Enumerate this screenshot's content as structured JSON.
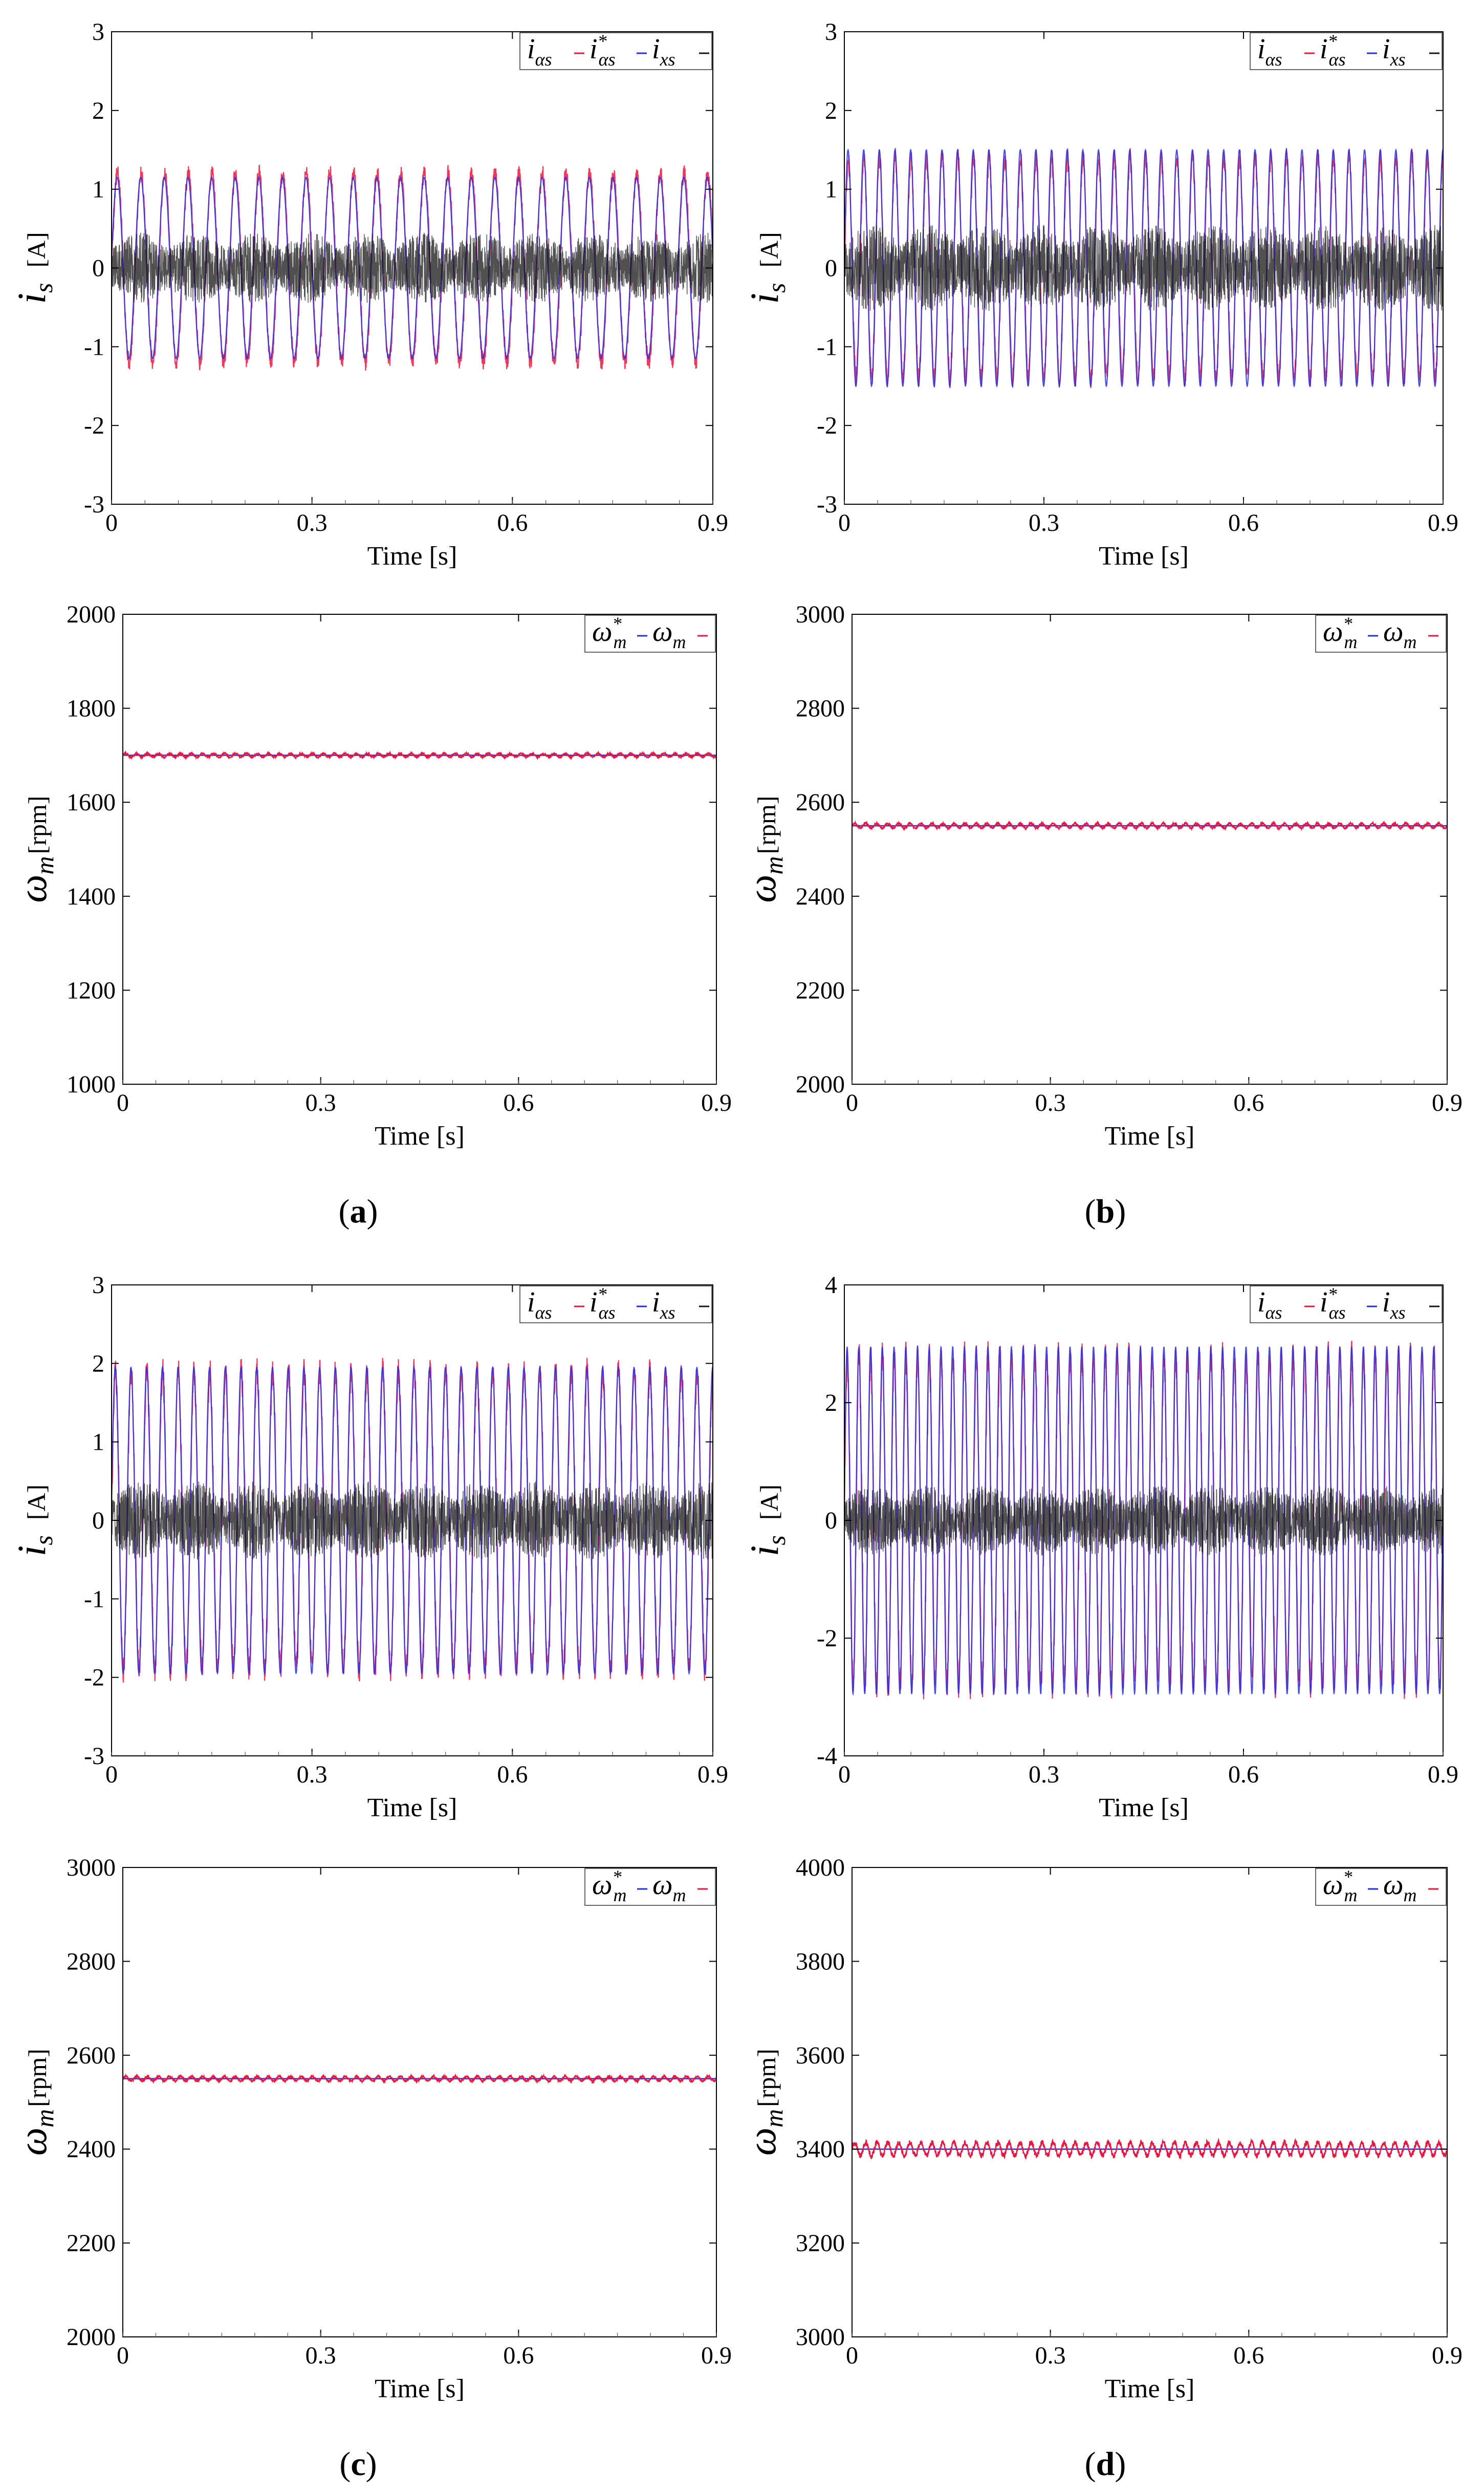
{
  "figure": {
    "panels": [
      {
        "id": "a",
        "caption": "(a)",
        "caption_letter": "a"
      },
      {
        "id": "b",
        "caption": "(b)",
        "caption_letter": "b"
      },
      {
        "id": "c",
        "caption": "(c)",
        "caption_letter": "c"
      },
      {
        "id": "d",
        "caption": "(d)",
        "caption_letter": "d"
      }
    ]
  },
  "colors": {
    "red": "#e8173f",
    "blue": "#2a2ee0",
    "dark": "#151515",
    "axis": "#000000",
    "minor_tick": "#555555"
  },
  "chart_data": [
    {
      "panel": "a",
      "kind": "current",
      "type": "line",
      "title": "",
      "xlabel": "Time [s]",
      "ylabel_symbol": "i",
      "ylabel_sub": "s",
      "ylabel_unit": "[A]",
      "xlim": [
        0,
        0.9
      ],
      "ylim": [
        -3,
        3
      ],
      "xticks": [
        0,
        0.3,
        0.6,
        0.9
      ],
      "xtick_labels": [
        "0",
        "0.3",
        "0.6",
        "0.9"
      ],
      "yticks": [
        -3,
        -2,
        -1,
        0,
        1,
        2,
        3
      ],
      "ytick_labels": [
        "-3",
        "-2",
        "-1",
        "0",
        "1",
        "2",
        "3"
      ],
      "grid": false,
      "legend_position": "top-right",
      "series": [
        {
          "name": "i_αs",
          "color_key": "red",
          "shape": "sine",
          "amplitude": 1.2,
          "frequency_hz": 28.3
        },
        {
          "name": "i*_αs",
          "color_key": "blue",
          "shape": "sine",
          "amplitude": 1.15,
          "frequency_hz": 28.3
        },
        {
          "name": "i_xs",
          "color_key": "dark",
          "shape": "noise",
          "amplitude": 0.45
        }
      ]
    },
    {
      "panel": "a",
      "kind": "speed",
      "type": "line",
      "title": "",
      "xlabel": "Time [s]",
      "ylabel_symbol": "ω",
      "ylabel_sub": "m",
      "ylabel_unit": "[rpm]",
      "xlim": [
        0,
        0.9
      ],
      "ylim": [
        1000,
        2000
      ],
      "xticks": [
        0,
        0.3,
        0.6,
        0.9
      ],
      "xtick_labels": [
        "0",
        "0.3",
        "0.6",
        "0.9"
      ],
      "yticks": [
        1000,
        1200,
        1400,
        1600,
        1800,
        2000
      ],
      "ytick_labels": [
        "1000",
        "1200",
        "1400",
        "1600",
        "1800",
        "2000"
      ],
      "grid": false,
      "legend_position": "top-right",
      "series": [
        {
          "name": "ω*_m",
          "color_key": "blue",
          "shape": "constant",
          "value": 1700
        },
        {
          "name": "ω_m",
          "color_key": "red",
          "shape": "ripple",
          "value": 1700,
          "ripple": 4
        }
      ]
    },
    {
      "panel": "b",
      "kind": "current",
      "type": "line",
      "title": "",
      "xlabel": "Time [s]",
      "ylabel_symbol": "i",
      "ylabel_sub": "s",
      "ylabel_unit": "[A]",
      "xlim": [
        0,
        0.9
      ],
      "ylim": [
        -3,
        3
      ],
      "xticks": [
        0,
        0.3,
        0.6,
        0.9
      ],
      "xtick_labels": [
        "0",
        "0.3",
        "0.6",
        "0.9"
      ],
      "yticks": [
        -3,
        -2,
        -1,
        0,
        1,
        2,
        3
      ],
      "ytick_labels": [
        "-3",
        "-2",
        "-1",
        "0",
        "1",
        "2",
        "3"
      ],
      "grid": false,
      "legend_position": "top-right",
      "series": [
        {
          "name": "i_αs",
          "color_key": "red",
          "shape": "sine",
          "amplitude": 1.4,
          "frequency_hz": 42.5
        },
        {
          "name": "i*_αs",
          "color_key": "blue",
          "shape": "sine",
          "amplitude": 1.5,
          "frequency_hz": 42.5
        },
        {
          "name": "i_xs",
          "color_key": "dark",
          "shape": "noise",
          "amplitude": 0.55
        }
      ]
    },
    {
      "panel": "b",
      "kind": "speed",
      "type": "line",
      "title": "",
      "xlabel": "Time [s]",
      "ylabel_symbol": "ω",
      "ylabel_sub": "m",
      "ylabel_unit": "[rpm]",
      "xlim": [
        0,
        0.9
      ],
      "ylim": [
        2000,
        3000
      ],
      "xticks": [
        0,
        0.3,
        0.6,
        0.9
      ],
      "xtick_labels": [
        "0",
        "0.3",
        "0.6",
        "0.9"
      ],
      "yticks": [
        2000,
        2200,
        2400,
        2600,
        2800,
        3000
      ],
      "ytick_labels": [
        "2000",
        "2200",
        "2400",
        "2600",
        "2800",
        "3000"
      ],
      "grid": false,
      "legend_position": "top-right",
      "series": [
        {
          "name": "ω*_m",
          "color_key": "blue",
          "shape": "constant",
          "value": 2550
        },
        {
          "name": "ω_m",
          "color_key": "red",
          "shape": "ripple",
          "value": 2550,
          "ripple": 5
        }
      ]
    },
    {
      "panel": "c",
      "kind": "current",
      "type": "line",
      "title": "",
      "xlabel": "Time [s]",
      "ylabel_symbol": "i",
      "ylabel_sub": "s",
      "ylabel_unit": "[A]",
      "xlim": [
        0,
        0.9
      ],
      "ylim": [
        -3,
        3
      ],
      "xticks": [
        0,
        0.3,
        0.6,
        0.9
      ],
      "xtick_labels": [
        "0",
        "0.3",
        "0.6",
        "0.9"
      ],
      "yticks": [
        -3,
        -2,
        -1,
        0,
        1,
        2,
        3
      ],
      "ytick_labels": [
        "-3",
        "-2",
        "-1",
        "0",
        "1",
        "2",
        "3"
      ],
      "grid": false,
      "legend_position": "top-right",
      "series": [
        {
          "name": "i_αs",
          "color_key": "red",
          "shape": "sine",
          "amplitude": 1.9,
          "frequency_hz": 42.5
        },
        {
          "name": "i*_αs",
          "color_key": "blue",
          "shape": "sine",
          "amplitude": 1.95,
          "frequency_hz": 42.5
        },
        {
          "name": "i_xs",
          "color_key": "dark",
          "shape": "noise",
          "amplitude": 0.5
        }
      ]
    },
    {
      "panel": "c",
      "kind": "speed",
      "type": "line",
      "title": "",
      "xlabel": "Time [s]",
      "ylabel_symbol": "ω",
      "ylabel_sub": "m",
      "ylabel_unit": "[rpm]",
      "xlim": [
        0,
        0.9
      ],
      "ylim": [
        2000,
        3000
      ],
      "xticks": [
        0,
        0.3,
        0.6,
        0.9
      ],
      "xtick_labels": [
        "0",
        "0.3",
        "0.6",
        "0.9"
      ],
      "yticks": [
        2000,
        2200,
        2400,
        2600,
        2800,
        3000
      ],
      "ytick_labels": [
        "2000",
        "2200",
        "2400",
        "2600",
        "2800",
        "3000"
      ],
      "grid": false,
      "legend_position": "top-right",
      "series": [
        {
          "name": "ω*_m",
          "color_key": "blue",
          "shape": "constant",
          "value": 2550
        },
        {
          "name": "ω_m",
          "color_key": "red",
          "shape": "ripple",
          "value": 2550,
          "ripple": 5
        }
      ]
    },
    {
      "panel": "d",
      "kind": "current",
      "type": "line",
      "title": "",
      "xlabel": "Time [s]",
      "ylabel_symbol": "i",
      "ylabel_sub": "s",
      "ylabel_unit": "[A]",
      "xlim": [
        0,
        0.9
      ],
      "ylim": [
        -4,
        4
      ],
      "xticks": [
        0,
        0.3,
        0.6,
        0.9
      ],
      "xtick_labels": [
        "0",
        "0.3",
        "0.6",
        "0.9"
      ],
      "yticks": [
        -4,
        -2,
        0,
        2,
        4
      ],
      "ytick_labels": [
        "-4",
        "-2",
        "0",
        "2",
        "4"
      ],
      "grid": false,
      "legend_position": "top-right",
      "series": [
        {
          "name": "i_αs",
          "color_key": "red",
          "shape": "sine",
          "amplitude": 2.8,
          "frequency_hz": 56.7
        },
        {
          "name": "i*_αs",
          "color_key": "blue",
          "shape": "sine",
          "amplitude": 2.95,
          "frequency_hz": 56.7
        },
        {
          "name": "i_xs",
          "color_key": "dark",
          "shape": "noise",
          "amplitude": 0.6
        }
      ]
    },
    {
      "panel": "d",
      "kind": "speed",
      "type": "line",
      "title": "",
      "xlabel": "Time [s]",
      "ylabel_symbol": "ω",
      "ylabel_sub": "m",
      "ylabel_unit": "[rpm]",
      "xlim": [
        0,
        0.9
      ],
      "ylim": [
        3000,
        4000
      ],
      "xticks": [
        0,
        0.3,
        0.6,
        0.9
      ],
      "xtick_labels": [
        "0",
        "0.3",
        "0.6",
        "0.9"
      ],
      "yticks": [
        3000,
        3200,
        3400,
        3600,
        3800,
        4000
      ],
      "ytick_labels": [
        "3000",
        "3200",
        "3400",
        "3600",
        "3800",
        "4000"
      ],
      "grid": false,
      "legend_position": "top-right",
      "series": [
        {
          "name": "ω*_m",
          "color_key": "blue",
          "shape": "constant",
          "value": 3400
        },
        {
          "name": "ω_m",
          "color_key": "red",
          "shape": "ripple",
          "value": 3400,
          "ripple": 14
        }
      ]
    }
  ]
}
